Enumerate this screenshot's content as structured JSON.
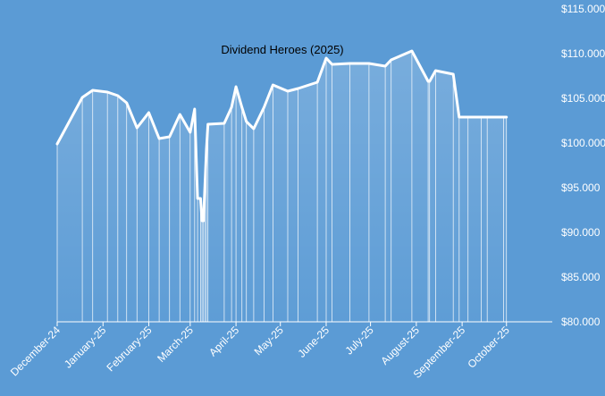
{
  "chart_data": {
    "type": "area",
    "title": "Dividend Heroes (2025)",
    "xlabel": "",
    "ylabel": "",
    "ylim": [
      80000,
      115000
    ],
    "yticks": [
      {
        "value": 115000,
        "label": "$115.000"
      },
      {
        "value": 110000,
        "label": "$110.000"
      },
      {
        "value": 105000,
        "label": "$105.000"
      },
      {
        "value": 100000,
        "label": "$100.000"
      },
      {
        "value": 95000,
        "label": "$95.000"
      },
      {
        "value": 90000,
        "label": "$90.000"
      },
      {
        "value": 85000,
        "label": "$85.000"
      },
      {
        "value": 80000,
        "label": "$80.000"
      }
    ],
    "xticks": [
      {
        "date": "2024-12-01",
        "label": "December-24"
      },
      {
        "date": "2025-01-01",
        "label": "January-25"
      },
      {
        "date": "2025-02-01",
        "label": "February-25"
      },
      {
        "date": "2025-03-01",
        "label": "March-25"
      },
      {
        "date": "2025-04-01",
        "label": "April-25"
      },
      {
        "date": "2025-05-01",
        "label": "May-25"
      },
      {
        "date": "2025-06-01",
        "label": "June-25"
      },
      {
        "date": "2025-07-01",
        "label": "July-25"
      },
      {
        "date": "2025-08-01",
        "label": "August-25"
      },
      {
        "date": "2025-09-01",
        "label": "September-25"
      },
      {
        "date": "2025-10-01",
        "label": "October-25"
      }
    ],
    "x_range": [
      "2024-12-01",
      "2025-11-01"
    ],
    "grid": false,
    "legend": "none",
    "series": [
      {
        "x": [
          "2024-12-01",
          "2024-12-18",
          "2024-12-25",
          "2025-01-04",
          "2025-01-11",
          "2025-01-17",
          "2025-01-24",
          "2025-02-01",
          "2025-02-08",
          "2025-02-15",
          "2025-02-22",
          "2025-03-01",
          "2025-03-04",
          "2025-03-06",
          "2025-03-08",
          "2025-03-09",
          "2025-03-10",
          "2025-03-11",
          "2025-03-12",
          "2025-03-13",
          "2025-03-24",
          "2025-03-29",
          "2025-04-01",
          "2025-04-05",
          "2025-04-08",
          "2025-04-13",
          "2025-04-20",
          "2025-04-26",
          "2025-05-06",
          "2025-05-13",
          "2025-05-26",
          "2025-06-01",
          "2025-06-05",
          "2025-06-17",
          "2025-06-30",
          "2025-07-11",
          "2025-07-15",
          "2025-07-29",
          "2025-08-09",
          "2025-08-10",
          "2025-08-14",
          "2025-08-26",
          "2025-08-30",
          "2025-09-05",
          "2025-09-14",
          "2025-09-18",
          "2025-09-29",
          "2025-10-01"
        ],
        "values": [
          99900,
          105100,
          105900,
          105700,
          105300,
          104500,
          101700,
          103400,
          100500,
          100700,
          103200,
          101200,
          103800,
          93800,
          93800,
          91300,
          91300,
          95500,
          99300,
          102100,
          102200,
          104000,
          106300,
          104000,
          102400,
          101600,
          104000,
          106500,
          105800,
          106100,
          106800,
          109500,
          108800,
          108900,
          108900,
          108600,
          109300,
          110300,
          106900,
          106900,
          108100,
          107700,
          102900,
          102900,
          102900,
          102900,
          102900,
          102900
        ],
        "color": "#ffffff"
      }
    ]
  }
}
